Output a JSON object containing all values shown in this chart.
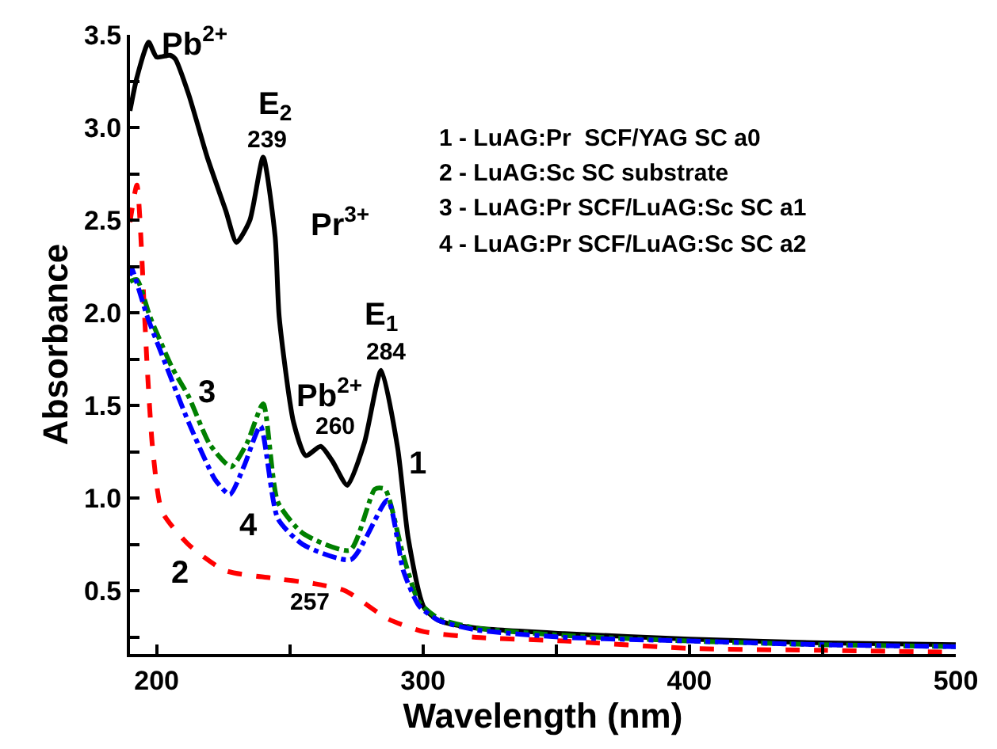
{
  "chart_data": {
    "type": "line",
    "xlabel": "Wavelength (nm)",
    "ylabel": "Absorbance",
    "xlim": [
      190,
      500
    ],
    "ylim": [
      0.16,
      3.5
    ],
    "xticks": [
      200,
      {
        "value": 250,
        "label": null
      },
      300,
      {
        "value": 350,
        "label": null
      },
      400,
      {
        "value": 450,
        "label": null
      },
      500
    ],
    "yticks": [
      {
        "value": 0.25,
        "label": null
      },
      {
        "value": 0.5,
        "label": "0.5"
      },
      {
        "value": 0.75,
        "label": null
      },
      {
        "value": 1.0,
        "label": "1.0"
      },
      {
        "value": 1.25,
        "label": null
      },
      {
        "value": 1.5,
        "label": "1.5"
      },
      {
        "value": 1.75,
        "label": null
      },
      {
        "value": 2.0,
        "label": "2.0"
      },
      {
        "value": 2.25,
        "label": null
      },
      {
        "value": 2.5,
        "label": "2.5"
      },
      {
        "value": 2.75,
        "label": null
      },
      {
        "value": 3.0,
        "label": "3.0"
      },
      {
        "value": 3.25,
        "label": null
      },
      {
        "value": 3.5,
        "label": "3.5"
      }
    ],
    "marker": "none",
    "series": [
      {
        "color": "#000000",
        "line_style": "solid",
        "x": [
          190,
          192.6,
          197,
          200,
          205,
          207,
          212,
          219,
          226,
          230,
          235,
          240,
          244.5,
          246,
          251.4,
          256,
          261.6,
          266,
          271.6,
          278,
          284.3,
          290.5,
          294.5,
          300.4,
          306,
          320,
          353,
          400,
          450,
          500
        ],
        "values": [
          3.09,
          3.27,
          3.46,
          3.38,
          3.39,
          3.37,
          3.18,
          2.84,
          2.55,
          2.38,
          2.5,
          2.84,
          2.41,
          1.98,
          1.41,
          1.23,
          1.28,
          1.2,
          1.07,
          1.3,
          1.69,
          1.27,
          0.78,
          0.41,
          0.34,
          0.3,
          0.27,
          0.24,
          0.22,
          0.21
        ]
      },
      {
        "color": "#ff0000",
        "line_style": "dashed",
        "x": [
          190,
          192.6,
          195.5,
          196.5,
          198.5,
          202,
          212,
          225.7,
          243,
          259,
          271,
          286.7,
          300.4,
          320,
          353,
          400,
          450,
          500
        ],
        "values": [
          2.49,
          2.69,
          1.98,
          1.7,
          1.27,
          0.93,
          0.75,
          0.61,
          0.57,
          0.54,
          0.5,
          0.35,
          0.28,
          0.25,
          0.23,
          0.19,
          0.18,
          0.17
        ]
      },
      {
        "color": "#008000",
        "line_style": "dashdot",
        "x": [
          190,
          192.6,
          197.5,
          206,
          212,
          220,
          228,
          234,
          240,
          245.5,
          255,
          272.6,
          282,
          285.7,
          292.6,
          298.5,
          306,
          320,
          353,
          400,
          450,
          500
        ],
        "values": [
          2.17,
          2.18,
          1.98,
          1.7,
          1.55,
          1.29,
          1.17,
          1.3,
          1.51,
          0.98,
          0.81,
          0.72,
          1.05,
          1.05,
          0.69,
          0.44,
          0.35,
          0.3,
          0.26,
          0.23,
          0.21,
          0.2
        ]
      },
      {
        "color": "#0000ff",
        "line_style": "dashdot",
        "x": [
          190,
          190.6,
          196.5,
          204,
          212,
          222,
          227.5,
          233,
          239,
          245.5,
          255,
          273,
          286.7,
          292.6,
          298.5,
          306,
          320,
          353,
          400,
          450,
          500
        ],
        "values": [
          2.2,
          2.24,
          1.98,
          1.7,
          1.41,
          1.1,
          1.02,
          1.18,
          1.39,
          0.89,
          0.75,
          0.67,
          0.99,
          0.61,
          0.42,
          0.34,
          0.29,
          0.25,
          0.23,
          0.21,
          0.2
        ]
      }
    ],
    "annotations": [
      "Pb$^{2+}$",
      "E$_{2}$",
      "239",
      "Pr$^{3+}$",
      "E$_{1}$",
      "284",
      "Pb$^{2+}$",
      "260",
      "1",
      "3",
      "4",
      "2",
      "257",
      "1 - LuAG:Pr  SCF/YAG SC a0",
      "2 - LuAG:Sc SC substrate",
      "3 - LuAG:Pr SCF/LuAG:Sc SC a1",
      "4 - LuAG:Pr SCF/LuAG:Sc SC a2"
    ]
  }
}
